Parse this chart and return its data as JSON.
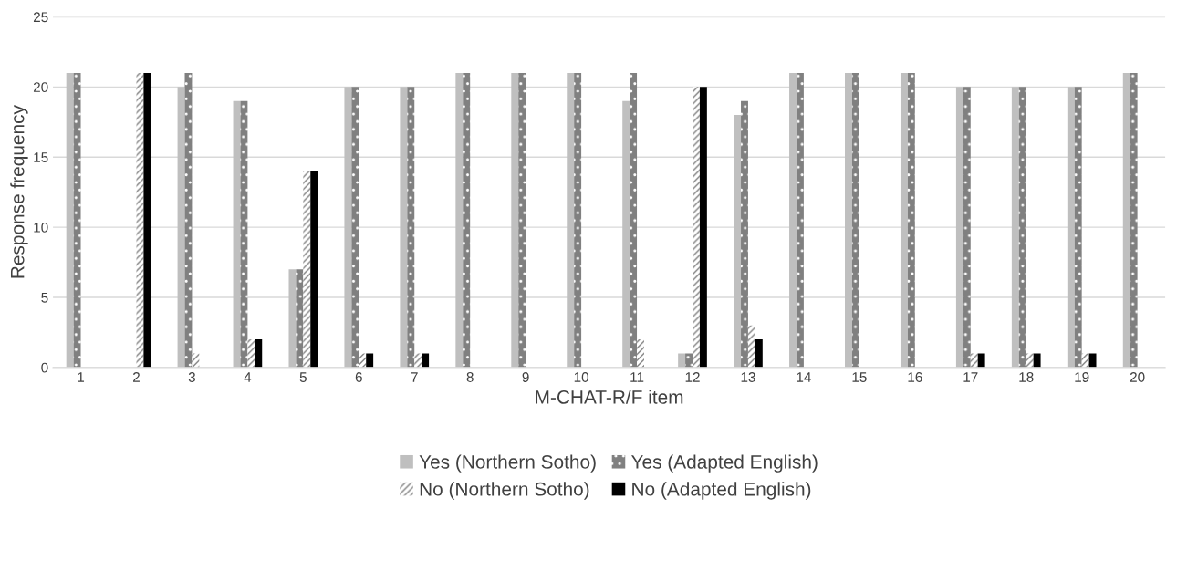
{
  "chart_data": {
    "type": "bar",
    "xlabel": "M-CHAT-R/F item",
    "ylabel": "Response frequency",
    "categories": [
      "1",
      "2",
      "3",
      "4",
      "5",
      "6",
      "7",
      "8",
      "9",
      "10",
      "11",
      "12",
      "13",
      "14",
      "15",
      "16",
      "17",
      "18",
      "19",
      "20"
    ],
    "series": [
      {
        "name": "Yes (Northern Sotho)",
        "color": "#bfbfbf",
        "values": [
          21,
          0,
          20,
          19,
          7,
          20,
          20,
          21,
          21,
          21,
          19,
          1,
          18,
          21,
          21,
          21,
          20,
          20,
          20,
          21
        ]
      },
      {
        "name": "Yes (Adapted English)",
        "color": "#808080",
        "values": [
          21,
          0,
          21,
          19,
          7,
          20,
          20,
          21,
          21,
          21,
          21,
          1,
          19,
          21,
          21,
          21,
          20,
          20,
          20,
          21
        ]
      },
      {
        "name": "No (Northern Sotho)",
        "color": "#808080",
        "values": [
          0,
          21,
          1,
          2,
          14,
          1,
          1,
          0,
          0,
          0,
          2,
          20,
          3,
          0,
          0,
          0,
          1,
          1,
          1,
          0
        ]
      },
      {
        "name": "No (Adapted English)",
        "color": "#000000",
        "values": [
          0,
          21,
          0,
          2,
          14,
          1,
          1,
          0,
          0,
          0,
          0,
          20,
          2,
          0,
          0,
          0,
          1,
          1,
          1,
          0
        ]
      }
    ],
    "ylim": [
      0,
      25
    ],
    "yticks": [
      0,
      5,
      10,
      15,
      20,
      25
    ],
    "grid": "y",
    "legend": "bottom"
  }
}
